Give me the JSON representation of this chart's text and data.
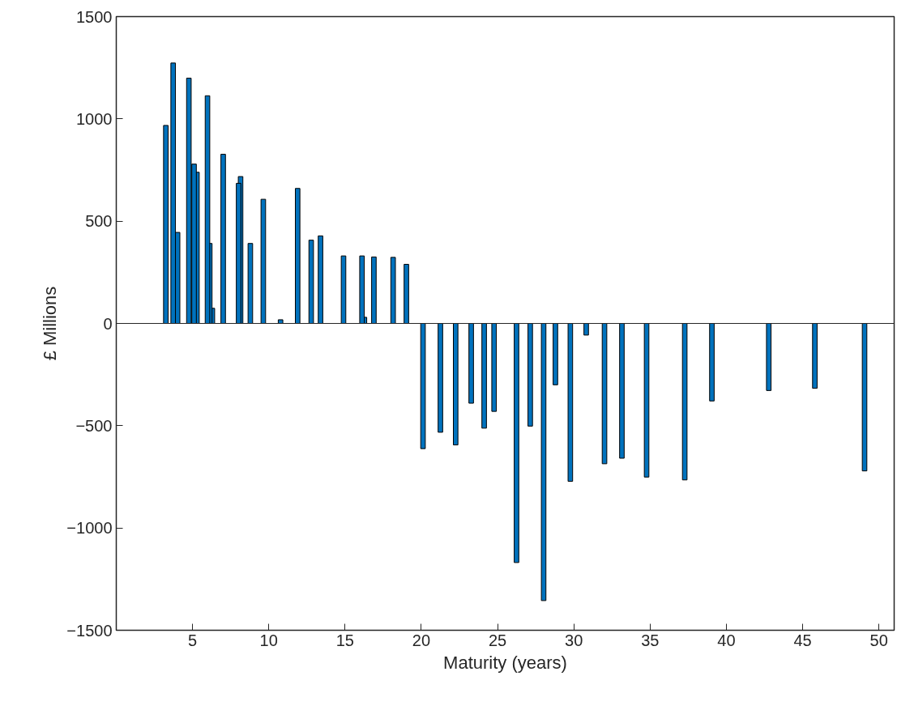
{
  "chart_data": {
    "type": "bar",
    "xlabel": "Maturity (years)",
    "ylabel": "£ Millions",
    "x": [
      3.25,
      3.73,
      4.02,
      4.76,
      5.1,
      5.29,
      5.98,
      6.13,
      6.3,
      7.01,
      8.02,
      8.15,
      8.79,
      9.64,
      10.77,
      11.89,
      12.78,
      13.39,
      14.9,
      16.11,
      16.27,
      16.89,
      18.15,
      19.02,
      20.11,
      21.25,
      22.25,
      23.27,
      24.12,
      24.77,
      26.24,
      27.14,
      28.02,
      28.79,
      29.77,
      30.81,
      32.01,
      33.15,
      34.77,
      37.27,
      39.05,
      42.78,
      45.8,
      49.06
    ],
    "values": [
      968,
      1273,
      445,
      1199,
      779,
      739,
      1113,
      391,
      74,
      827,
      685,
      718,
      391,
      607,
      18,
      660,
      407,
      428,
      330,
      330,
      30,
      325,
      323,
      289,
      -612,
      -532,
      -594,
      -390,
      -512,
      -430,
      -1169,
      -502,
      -1355,
      -300,
      -772,
      -57,
      -686,
      -659,
      -751,
      -765,
      -379,
      -328,
      -317,
      -721
    ],
    "color": "#0072bd",
    "xlim": [
      0,
      51
    ],
    "xticks": [
      5,
      10,
      15,
      20,
      25,
      30,
      35,
      40,
      45,
      50
    ],
    "ylim": [
      -1500,
      1500
    ],
    "yticks": [
      -1500,
      -1000,
      -500,
      0,
      500,
      1000,
      1500
    ],
    "ref_lines": [
      {
        "axis": "y",
        "value": 0
      }
    ],
    "grid": false
  }
}
